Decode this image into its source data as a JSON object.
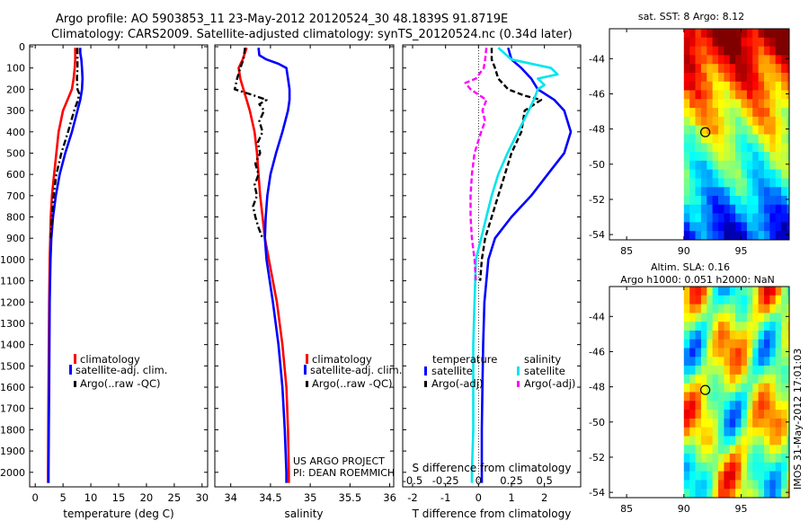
{
  "header": {
    "line1": "Argo profile: AO 5903853_11 23-May-2012 20120524_30 48.1839S 91.8719E",
    "line2": "Climatology: CARS2009. Satellite-adjusted climatology: synTS_20120524.nc (0.34d later)"
  },
  "colors": {
    "climatology": "#ff0000",
    "satellite": "#0000ff",
    "argo": "#000000",
    "sat_salinity": "#00e5ee",
    "argo_salinity": "#ff00ff"
  },
  "depth_axis": {
    "ticks": [
      0,
      100,
      200,
      300,
      400,
      500,
      600,
      700,
      800,
      900,
      1000,
      1100,
      1200,
      1300,
      1400,
      1500,
      1600,
      1700,
      1800,
      1900,
      2000
    ]
  },
  "chart_data": [
    {
      "id": "temperature",
      "type": "line",
      "xlabel": "temperature (deg C)",
      "xlim": [
        -1,
        31
      ],
      "ylim": [
        0,
        2060
      ],
      "xticks": [
        0,
        5,
        10,
        15,
        20,
        25,
        30
      ],
      "legend": {
        "placement": "bottom-left",
        "entries": [
          "climatology",
          "satellite-adj. clim.",
          "Argo(..raw -QC)"
        ]
      },
      "series": [
        {
          "name": "climatology",
          "style": "solid",
          "color": "#ff0000",
          "depth": [
            5,
            30,
            60,
            100,
            150,
            200,
            250,
            300,
            400,
            500,
            600,
            700,
            800,
            900,
            1000,
            1200,
            1400,
            1600,
            1800,
            2000,
            2050
          ],
          "values": [
            7.2,
            7.2,
            7.2,
            7.1,
            6.9,
            6.6,
            5.8,
            5.0,
            4.2,
            3.8,
            3.4,
            3.0,
            2.8,
            2.7,
            2.6,
            2.5,
            2.45,
            2.4,
            2.35,
            2.3,
            2.3
          ]
        },
        {
          "name": "satellite-adj. clim.",
          "style": "solid",
          "color": "#0000ff",
          "depth": [
            5,
            30,
            60,
            100,
            150,
            200,
            250,
            300,
            400,
            500,
            600,
            700,
            800,
            900,
            1000,
            1200,
            1400,
            1600,
            1800,
            2000,
            2050
          ],
          "values": [
            8.1,
            8.1,
            8.3,
            8.4,
            8.5,
            8.4,
            8.1,
            7.6,
            6.6,
            5.4,
            4.4,
            3.7,
            3.2,
            2.9,
            2.75,
            2.6,
            2.55,
            2.5,
            2.45,
            2.4,
            2.4
          ]
        },
        {
          "name": "Argo(..raw -QC)",
          "style": "dashdot",
          "color": "#000000",
          "depth": [
            5,
            50,
            100,
            150,
            200,
            220,
            250,
            300,
            400,
            500,
            600,
            700,
            800,
            900
          ],
          "values": [
            7.6,
            7.6,
            7.6,
            7.5,
            7.6,
            7.9,
            7.7,
            7.0,
            5.9,
            4.7,
            3.8,
            3.3,
            3.0,
            2.8
          ]
        }
      ]
    },
    {
      "id": "salinity",
      "type": "line",
      "xlabel": "salinity",
      "xlim": [
        33.8,
        36.05
      ],
      "ylim": [
        0,
        2060
      ],
      "xticks": [
        34,
        34.5,
        35,
        35.5,
        36
      ],
      "legend": {
        "placement": "bottom-right",
        "entries": [
          "climatology",
          "satellite-adj. clim.",
          "Argo(..raw -QC)"
        ]
      },
      "annotation": [
        "US ARGO PROJECT",
        "PI: DEAN ROEMMICH"
      ],
      "series": [
        {
          "name": "climatology",
          "style": "solid",
          "color": "#ff0000",
          "depth": [
            5,
            60,
            100,
            150,
            200,
            250,
            300,
            400,
            500,
            600,
            700,
            800,
            900,
            1000,
            1200,
            1400,
            1600,
            1800,
            2000,
            2050
          ],
          "values": [
            34.2,
            34.15,
            34.1,
            34.12,
            34.16,
            34.2,
            34.24,
            34.3,
            34.33,
            34.35,
            34.37,
            34.4,
            34.43,
            34.48,
            34.58,
            34.65,
            34.7,
            34.72,
            34.73,
            34.73
          ]
        },
        {
          "name": "satellite-adj. clim.",
          "style": "solid",
          "color": "#0000ff",
          "depth": [
            5,
            40,
            60,
            80,
            100,
            150,
            200,
            250,
            300,
            400,
            500,
            600,
            700,
            800,
            900,
            1000,
            1200,
            1400,
            1600,
            1800,
            2000,
            2050
          ],
          "values": [
            34.35,
            34.36,
            34.45,
            34.6,
            34.7,
            34.72,
            34.74,
            34.74,
            34.72,
            34.65,
            34.57,
            34.5,
            34.46,
            34.44,
            34.43,
            34.45,
            34.53,
            34.6,
            34.65,
            34.68,
            34.7,
            34.7
          ]
        },
        {
          "name": "Argo(..raw -QC)",
          "style": "dashdot",
          "color": "#000000",
          "depth": [
            5,
            60,
            100,
            150,
            200,
            230,
            250,
            270,
            300,
            350,
            400,
            450,
            500,
            550,
            600,
            650,
            700,
            750,
            800,
            850,
            900
          ],
          "values": [
            34.18,
            34.16,
            34.12,
            34.08,
            34.05,
            34.3,
            34.45,
            34.36,
            34.42,
            34.36,
            34.4,
            34.34,
            34.37,
            34.31,
            34.35,
            34.3,
            34.33,
            34.28,
            34.31,
            34.35,
            34.4
          ]
        }
      ]
    },
    {
      "id": "difference",
      "type": "line",
      "xlabel": "T difference from climatology",
      "xlim": [
        -2.3,
        3.1
      ],
      "ylim": [
        0,
        2060
      ],
      "xticks": [
        -2,
        -1,
        0,
        1,
        2
      ],
      "top_xlabel": "S difference from climatology",
      "top_xticks": [
        {
          "value": -0.5,
          "label": "-0.5"
        },
        {
          "value": -0.25,
          "label": "-0.25"
        },
        {
          "value": 0,
          "label": "0"
        },
        {
          "value": 0.25,
          "label": "0.25"
        },
        {
          "value": 0.5,
          "label": "0.5"
        }
      ],
      "s_scale": 4,
      "legend": {
        "placement": "bottom",
        "headers": [
          "temperature",
          "salinity"
        ],
        "entries": [
          "satellite",
          "Argo(-adj)",
          "satellite",
          "Argo(-adj)"
        ]
      },
      "series": [
        {
          "name": "T satellite",
          "style": "solid",
          "color": "#0000ff",
          "depth": [
            5,
            60,
            100,
            150,
            200,
            250,
            300,
            400,
            500,
            600,
            700,
            800,
            900,
            1000,
            1200,
            1400,
            1600,
            1800,
            2000,
            2050
          ],
          "values": [
            0.9,
            1.0,
            1.3,
            1.6,
            1.8,
            2.3,
            2.6,
            2.8,
            2.6,
            2.1,
            1.6,
            1.0,
            0.5,
            0.3,
            0.18,
            0.14,
            0.12,
            0.1,
            0.1,
            0.1
          ]
        },
        {
          "name": "T Argo(-adj)",
          "style": "dashed",
          "color": "#000000",
          "depth": [
            5,
            60,
            100,
            150,
            200,
            230,
            250,
            300,
            400,
            500,
            600,
            700,
            800,
            900,
            1000,
            1100
          ],
          "values": [
            0.4,
            0.4,
            0.5,
            0.6,
            0.9,
            1.4,
            1.9,
            1.4,
            1.3,
            1.0,
            0.8,
            0.6,
            0.4,
            0.2,
            0.1,
            0.05
          ]
        },
        {
          "name": "S satellite",
          "style": "solid",
          "color": "#00e5ee",
          "depth": [
            5,
            60,
            100,
            130,
            150,
            180,
            200,
            250,
            300,
            400,
            500,
            600,
            700,
            800,
            900,
            1000,
            1200,
            1400,
            1600,
            1800,
            2000,
            2050
          ],
          "values": [
            0.15,
            0.25,
            0.55,
            0.6,
            0.45,
            0.5,
            0.45,
            0.42,
            0.38,
            0.3,
            0.22,
            0.15,
            0.1,
            0.06,
            0.02,
            -0.02,
            -0.03,
            -0.04,
            -0.04,
            -0.04,
            -0.05,
            -0.05
          ]
        },
        {
          "name": "S Argo(-adj)",
          "style": "dashed",
          "color": "#ff00ff",
          "depth": [
            5,
            60,
            100,
            150,
            170,
            200,
            250,
            300,
            350,
            400,
            500,
            600,
            700,
            800,
            900,
            1000,
            1100
          ],
          "values": [
            0.06,
            0.05,
            0.04,
            -0.02,
            -0.1,
            -0.06,
            0.06,
            0.03,
            0.05,
            0.02,
            -0.03,
            -0.05,
            -0.06,
            -0.06,
            -0.05,
            -0.03,
            -0.02
          ]
        }
      ]
    },
    {
      "id": "sst_map",
      "type": "heatmap",
      "title": "sat. SST: 8 Argo: 8.12",
      "xlim": [
        83.5,
        99.2
      ],
      "ylim": [
        -54.3,
        -42.3
      ],
      "xticks": [
        85,
        90,
        95
      ],
      "yticks": [
        -44,
        -46,
        -48,
        -50,
        -52,
        -54
      ],
      "data_extent_lon": [
        90,
        99.2
      ],
      "marker": {
        "lon": 91.87,
        "lat": -48.18
      }
    },
    {
      "id": "sla_map",
      "type": "heatmap",
      "title_lines": [
        "Altim. SLA: 0.16",
        "Argo h1000: 0.051 h2000: NaN"
      ],
      "xlim": [
        83.5,
        99.2
      ],
      "ylim": [
        -54.3,
        -42.3
      ],
      "xticks": [
        85,
        90,
        95
      ],
      "yticks": [
        -44,
        -46,
        -48,
        -50,
        -52,
        -54
      ],
      "data_extent_lon": [
        90,
        99.2
      ],
      "marker": {
        "lon": 91.87,
        "lat": -48.18
      }
    }
  ],
  "footer": {
    "imos_stamp": "IMOS 31-May-2012 17:01:03"
  }
}
